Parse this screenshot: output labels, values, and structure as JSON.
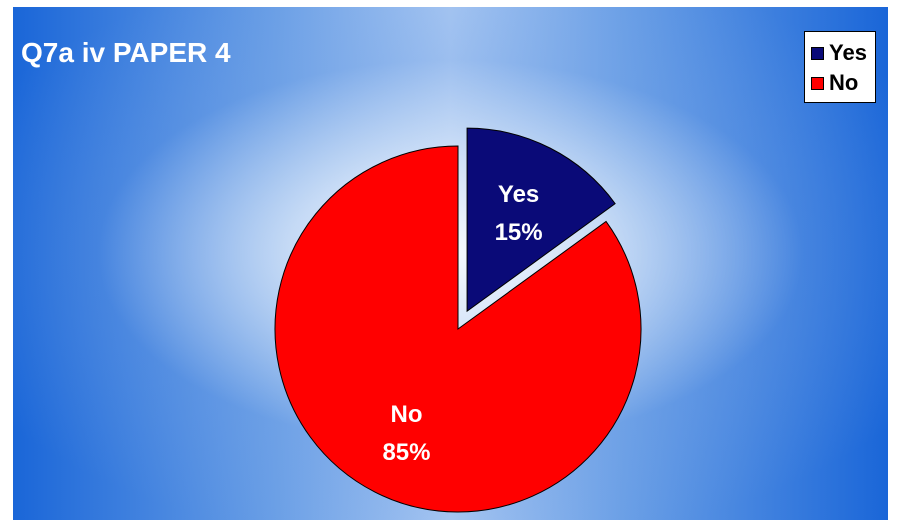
{
  "chart_data": {
    "type": "pie",
    "title": "Q7a iv PAPER 4",
    "legend_position": "top-right",
    "slices": [
      {
        "label": "Yes",
        "value": 15,
        "value_label": "15%",
        "color": "#0a0a78",
        "exploded": true
      },
      {
        "label": "No",
        "value": 85,
        "value_label": "85%",
        "color": "#ff0000",
        "exploded": false
      }
    ]
  }
}
